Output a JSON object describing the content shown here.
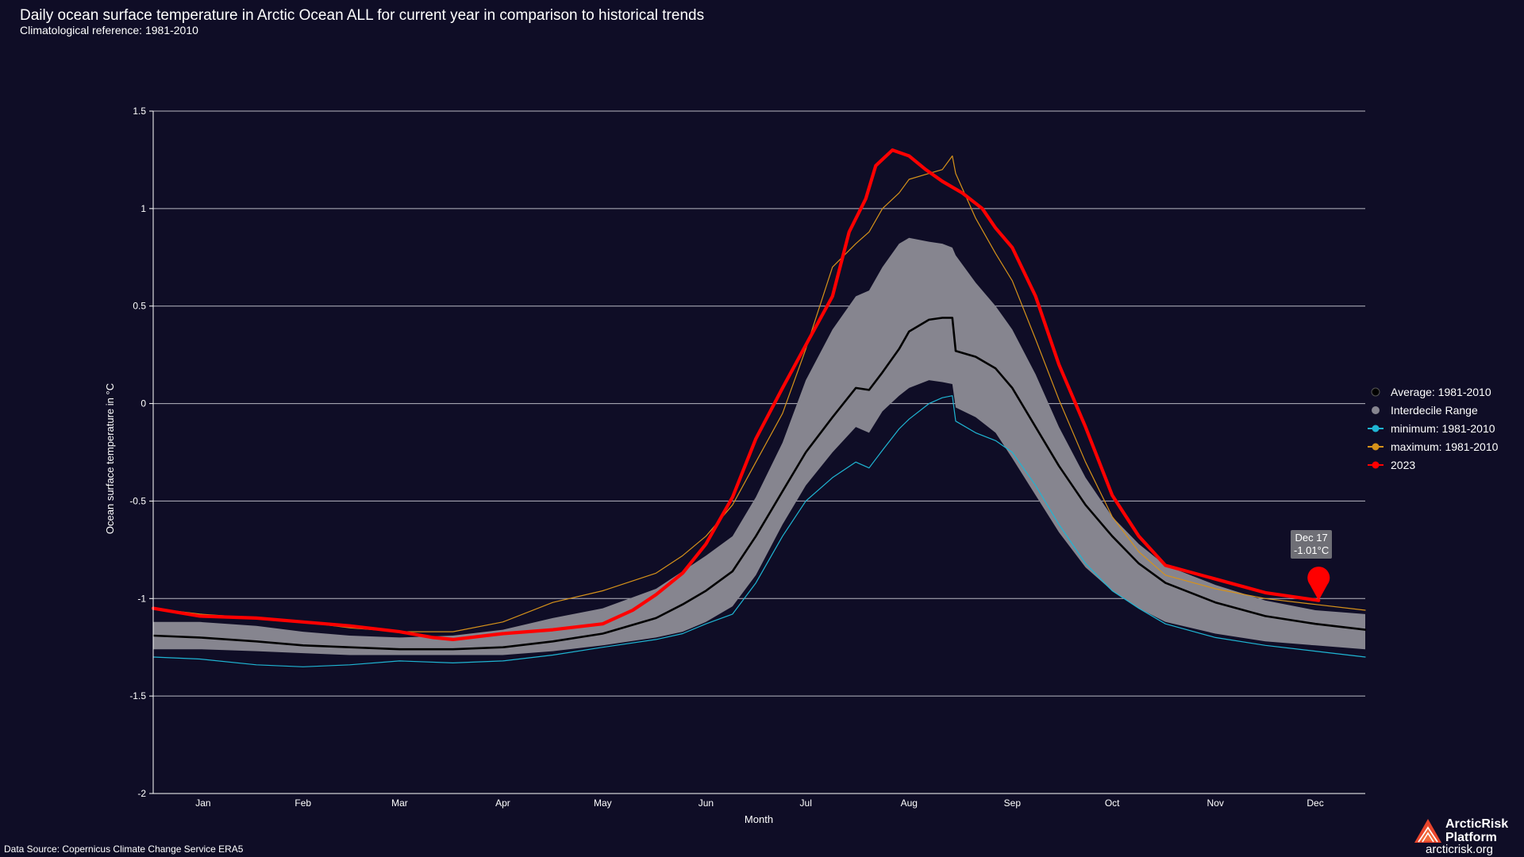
{
  "header": {
    "title": "Daily ocean surface temperature in Arctic Ocean ALL for current year in comparison to historical trends",
    "subtitle": "Climatological reference: 1981-2010"
  },
  "tooltip": {
    "date": "Dec 17",
    "value": "-1.01°C"
  },
  "footer": {
    "source": "Data Source: Copernicus Climate Change Service ERA5",
    "brand_name_line1": "ArcticRisk",
    "brand_name_line2": "Platform",
    "brand_url": "arcticrisk.org"
  },
  "colors": {
    "background": "#0f0d26",
    "average": "#000000",
    "interdecile": "#86858f",
    "minimum": "#1fb5d3",
    "maximum": "#d6921a",
    "current": "#ff0000",
    "grid": "#b8b8c2"
  },
  "chart_data": {
    "type": "line",
    "xlabel": "Month",
    "ylabel": "Ocean surface temperature in °C",
    "x_unit": "day of year",
    "xlim": [
      1,
      365
    ],
    "ylim": [
      -2,
      1.5
    ],
    "yticks": [
      -2,
      -1.5,
      -1,
      -0.5,
      0,
      0.5,
      1,
      1.5
    ],
    "ytick_labels": [
      "-2",
      "-1.5",
      "-1",
      "-0.5",
      "0",
      "0.5",
      "1",
      "1.5"
    ],
    "month_labels": [
      "Jan",
      "Feb",
      "Mar",
      "Apr",
      "May",
      "Jun",
      "Jul",
      "Aug",
      "Sep",
      "Oct",
      "Nov",
      "Dec"
    ],
    "month_label_days": [
      16,
      46,
      75,
      106,
      136,
      167,
      197,
      228,
      259,
      289,
      320,
      350
    ],
    "grid": true,
    "legend_position": "right",
    "legend": [
      {
        "key": "average",
        "label": "Average: 1981-2010"
      },
      {
        "key": "interdecile",
        "label": "Interdecile Range"
      },
      {
        "key": "minimum",
        "label": "minimum: 1981-2010"
      },
      {
        "key": "maximum",
        "label": "maximum: 1981-2010"
      },
      {
        "key": "current",
        "label": "2023"
      }
    ],
    "highlight_point": {
      "day": 351,
      "value": -1.01
    },
    "series": [
      {
        "key": "average",
        "name": "Average: 1981-2010",
        "x": [
          1,
          15,
          32,
          46,
          60,
          75,
          91,
          106,
          121,
          136,
          152,
          160,
          167,
          175,
          182,
          190,
          197,
          205,
          212,
          216,
          220,
          225,
          228,
          234,
          238,
          241,
          242,
          248,
          254,
          259,
          266,
          273,
          281,
          289,
          297,
          305,
          320,
          335,
          350,
          365
        ],
        "y": [
          -1.19,
          -1.2,
          -1.22,
          -1.24,
          -1.25,
          -1.26,
          -1.26,
          -1.25,
          -1.22,
          -1.18,
          -1.1,
          -1.03,
          -0.96,
          -0.86,
          -0.68,
          -0.45,
          -0.25,
          -0.07,
          0.08,
          0.07,
          0.16,
          0.28,
          0.37,
          0.43,
          0.44,
          0.44,
          0.27,
          0.24,
          0.18,
          0.08,
          -0.12,
          -0.32,
          -0.52,
          -0.68,
          -0.82,
          -0.92,
          -1.02,
          -1.09,
          -1.13,
          -1.16
        ]
      },
      {
        "key": "interdecile",
        "name": "Interdecile Range",
        "x": [
          1,
          15,
          32,
          46,
          60,
          75,
          91,
          106,
          121,
          136,
          152,
          160,
          167,
          175,
          182,
          190,
          197,
          205,
          212,
          216,
          220,
          225,
          228,
          234,
          238,
          241,
          242,
          248,
          254,
          259,
          266,
          273,
          281,
          289,
          297,
          305,
          320,
          335,
          350,
          365
        ],
        "lower": [
          -1.26,
          -1.26,
          -1.27,
          -1.28,
          -1.29,
          -1.29,
          -1.29,
          -1.29,
          -1.27,
          -1.24,
          -1.2,
          -1.17,
          -1.12,
          -1.04,
          -0.88,
          -0.62,
          -0.42,
          -0.25,
          -0.12,
          -0.15,
          -0.04,
          0.04,
          0.08,
          0.12,
          0.11,
          0.1,
          -0.02,
          -0.07,
          -0.15,
          -0.28,
          -0.47,
          -0.66,
          -0.84,
          -0.96,
          -1.05,
          -1.12,
          -1.18,
          -1.22,
          -1.24,
          -1.26
        ],
        "upper": [
          -1.12,
          -1.12,
          -1.14,
          -1.17,
          -1.19,
          -1.2,
          -1.19,
          -1.16,
          -1.1,
          -1.05,
          -0.95,
          -0.86,
          -0.78,
          -0.68,
          -0.48,
          -0.2,
          0.12,
          0.38,
          0.55,
          0.58,
          0.7,
          0.82,
          0.85,
          0.83,
          0.82,
          0.8,
          0.76,
          0.62,
          0.5,
          0.38,
          0.15,
          -0.12,
          -0.38,
          -0.58,
          -0.72,
          -0.83,
          -0.93,
          -1.01,
          -1.06,
          -1.08
        ]
      },
      {
        "key": "minimum",
        "name": "minimum: 1981-2010",
        "x": [
          1,
          15,
          32,
          46,
          60,
          75,
          91,
          106,
          121,
          136,
          152,
          160,
          167,
          175,
          182,
          190,
          197,
          205,
          212,
          216,
          220,
          225,
          228,
          234,
          238,
          241,
          242,
          248,
          254,
          259,
          266,
          273,
          281,
          289,
          297,
          305,
          320,
          335,
          350,
          365
        ],
        "y": [
          -1.3,
          -1.31,
          -1.34,
          -1.35,
          -1.34,
          -1.32,
          -1.33,
          -1.32,
          -1.29,
          -1.25,
          -1.21,
          -1.18,
          -1.13,
          -1.08,
          -0.92,
          -0.68,
          -0.5,
          -0.38,
          -0.3,
          -0.33,
          -0.24,
          -0.13,
          -0.08,
          0.0,
          0.03,
          0.04,
          -0.09,
          -0.15,
          -0.19,
          -0.25,
          -0.42,
          -0.62,
          -0.82,
          -0.96,
          -1.05,
          -1.13,
          -1.2,
          -1.24,
          -1.27,
          -1.3
        ]
      },
      {
        "key": "maximum",
        "name": "maximum: 1981-2010",
        "x": [
          1,
          15,
          32,
          46,
          60,
          75,
          91,
          106,
          121,
          136,
          152,
          160,
          167,
          175,
          182,
          190,
          197,
          205,
          212,
          216,
          220,
          225,
          228,
          234,
          238,
          241,
          242,
          248,
          254,
          259,
          266,
          273,
          281,
          289,
          297,
          305,
          320,
          335,
          350,
          365
        ],
        "y": [
          -1.05,
          -1.08,
          -1.1,
          -1.12,
          -1.15,
          -1.17,
          -1.17,
          -1.12,
          -1.02,
          -0.96,
          -0.87,
          -0.78,
          -0.68,
          -0.52,
          -0.3,
          -0.05,
          0.28,
          0.7,
          0.82,
          0.88,
          1.0,
          1.08,
          1.15,
          1.18,
          1.2,
          1.27,
          1.18,
          0.95,
          0.77,
          0.63,
          0.33,
          0.02,
          -0.3,
          -0.58,
          -0.76,
          -0.88,
          -0.95,
          -1.0,
          -1.03,
          -1.06
        ]
      },
      {
        "key": "current",
        "name": "2023",
        "x": [
          1,
          15,
          32,
          46,
          60,
          75,
          85,
          91,
          106,
          121,
          136,
          145,
          152,
          160,
          167,
          175,
          182,
          190,
          197,
          205,
          210,
          215,
          218,
          223,
          228,
          233,
          238,
          244,
          250,
          254,
          259,
          266,
          273,
          281,
          289,
          297,
          305,
          320,
          335,
          351
        ],
        "y": [
          -1.05,
          -1.09,
          -1.1,
          -1.12,
          -1.14,
          -1.17,
          -1.2,
          -1.21,
          -1.18,
          -1.16,
          -1.13,
          -1.06,
          -0.98,
          -0.87,
          -0.72,
          -0.48,
          -0.18,
          0.08,
          0.3,
          0.55,
          0.88,
          1.05,
          1.22,
          1.3,
          1.27,
          1.2,
          1.14,
          1.08,
          1.0,
          0.9,
          0.8,
          0.55,
          0.2,
          -0.12,
          -0.47,
          -0.68,
          -0.83,
          -0.9,
          -0.97,
          -1.01
        ]
      }
    ]
  }
}
